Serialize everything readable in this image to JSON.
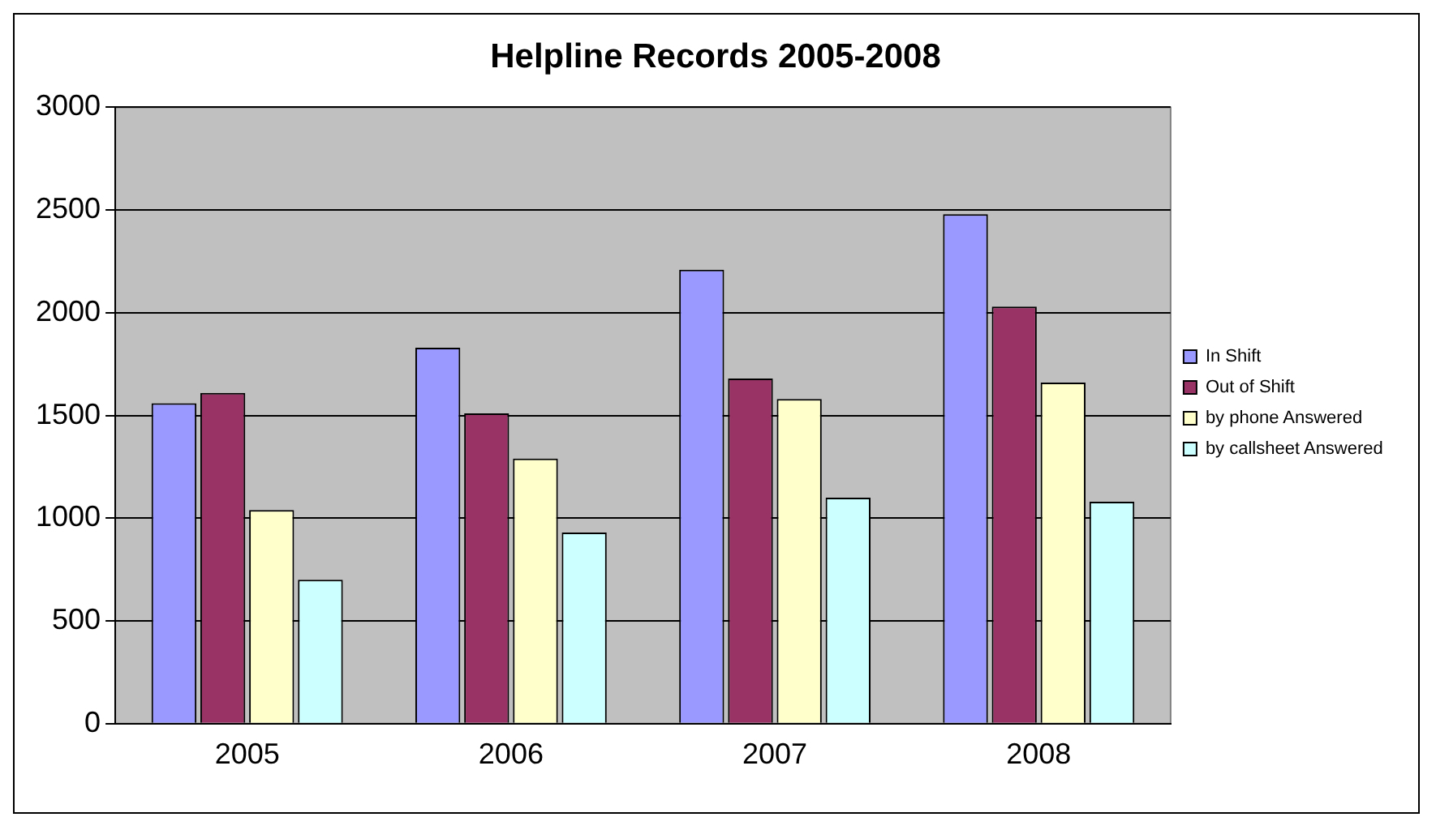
{
  "chart_data": {
    "type": "bar",
    "title": "Helpline Records 2005-2008",
    "categories": [
      "2005",
      "2006",
      "2007",
      "2008"
    ],
    "series": [
      {
        "name": "In Shift",
        "color": "#9999ff",
        "values": [
          1560,
          1830,
          2210,
          2480
        ]
      },
      {
        "name": "Out of Shift",
        "color": "#993366",
        "values": [
          1610,
          1510,
          1680,
          2030
        ]
      },
      {
        "name": "by phone Answered",
        "color": "#ffffcc",
        "values": [
          1040,
          1290,
          1580,
          1660
        ]
      },
      {
        "name": "by callsheet Answered",
        "color": "#ccffff",
        "values": [
          700,
          930,
          1100,
          1080
        ]
      }
    ],
    "ylim": [
      0,
      3000
    ],
    "yticks": [
      0,
      500,
      1000,
      1500,
      2000,
      2500,
      3000
    ],
    "grid": "y",
    "legend": "right"
  }
}
